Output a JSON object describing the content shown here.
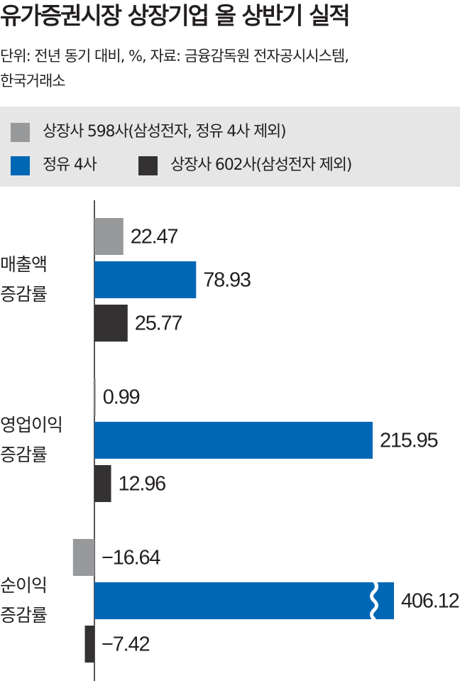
{
  "chart_data": {
    "type": "bar",
    "orientation": "horizontal",
    "title": "유가증권시장 상장기업 올 상반기 실적",
    "subtitle": [
      "단위: 전년 동기 대비, %, 자료: 금융감독원 전자공시시스템,",
      "한국거래소"
    ],
    "categories": [
      [
        "매출액",
        "증감률"
      ],
      [
        "영업이익",
        "증감률"
      ],
      [
        "순이익",
        "증감률"
      ]
    ],
    "series": [
      {
        "name": "상장사 598사(삼성전자, 정유 4사 제외)",
        "color": "#98999b",
        "values": [
          22.47,
          0.99,
          -16.64
        ],
        "value_labels": [
          "22.47",
          "0.99",
          "−16.64"
        ]
      },
      {
        "name": "정유 4사",
        "color": "#0067b4",
        "values": [
          78.93,
          215.95,
          406.12
        ]
      },
      {
        "name": "상장사 602사(삼성전자 제외)",
        "color": "#333132",
        "values": [
          25.77,
          12.96,
          -7.42
        ],
        "value_labels": [
          "25.77",
          "12.96",
          "−7.42"
        ]
      }
    ]
  }
}
